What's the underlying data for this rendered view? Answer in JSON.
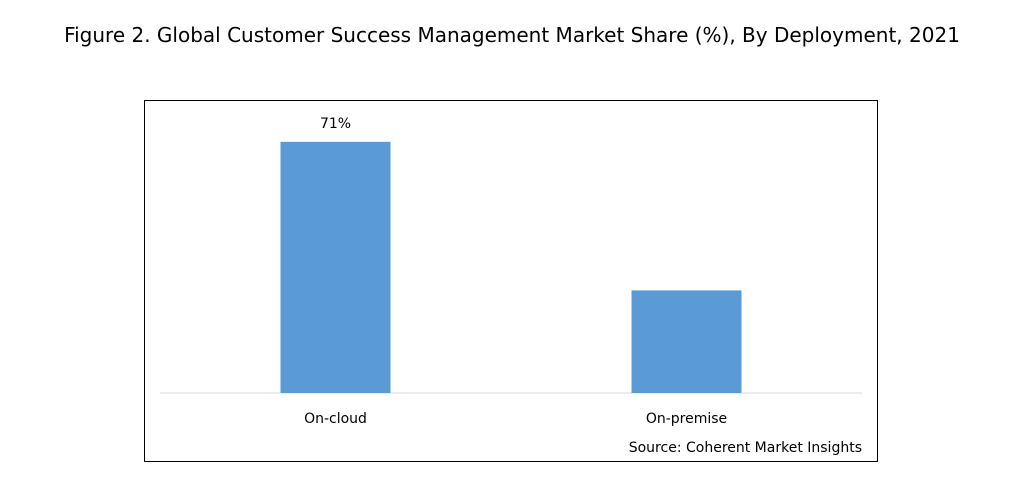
{
  "title": "Figure 2. Global Customer Success Management Market Share (%), By Deployment, 2021",
  "source": "Source: Coherent Market Insights",
  "chart_data": {
    "type": "bar",
    "categories": [
      "On-cloud",
      "On-premise"
    ],
    "values": [
      71,
      29
    ],
    "data_labels": [
      "71%",
      ""
    ],
    "title": "Figure 2. Global Customer Success Management Market Share (%), By Deployment, 2021",
    "xlabel": "",
    "ylabel": "",
    "ylim": [
      0,
      80
    ],
    "grid": false,
    "legend": "none",
    "bar_color": "#5b9bd5",
    "axis_color": "#d9d9d9"
  }
}
